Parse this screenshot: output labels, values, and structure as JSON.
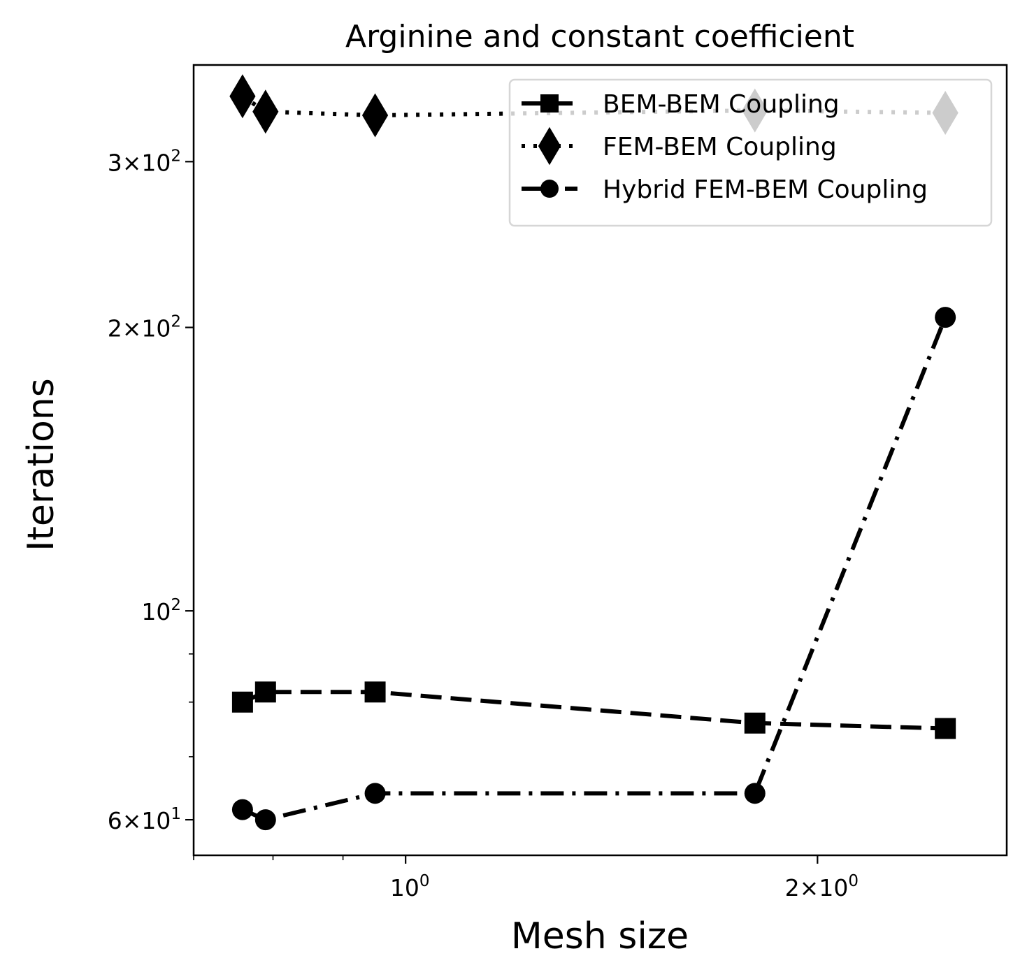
{
  "chart_data": {
    "type": "line",
    "title": "Arginine and constant coefficient",
    "xlabel": "Mesh size",
    "ylabel": "Iterations",
    "x_scale": "log",
    "y_scale": "log",
    "xlim": [
      0.7,
      2.75
    ],
    "ylim": [
      55,
      380
    ],
    "xticks": [
      {
        "value": 1,
        "base": "10",
        "exp": "0",
        "mantissa": ""
      },
      {
        "value": 2,
        "base": "10",
        "exp": "0",
        "mantissa": "2"
      }
    ],
    "yticks": [
      {
        "value": 60,
        "base": "10",
        "exp": "1",
        "mantissa": "6"
      },
      {
        "value": 100,
        "base": "10",
        "exp": "2",
        "mantissa": ""
      },
      {
        "value": 200,
        "base": "10",
        "exp": "2",
        "mantissa": "2"
      },
      {
        "value": 300,
        "base": "10",
        "exp": "2",
        "mantissa": "3"
      }
    ],
    "times_symbol": "×",
    "grid": false,
    "legend_position": "top-right",
    "series": [
      {
        "name": "BEM-BEM Coupling",
        "marker": "square",
        "linestyle": "dashed",
        "color": "#000000",
        "x": [
          0.76,
          0.79,
          0.95,
          1.8,
          2.48
        ],
        "y": [
          80,
          82,
          82,
          76,
          75
        ]
      },
      {
        "name": "FEM-BEM Coupling",
        "marker": "diamond",
        "linestyle": "dotted",
        "color": "#000000",
        "x": [
          0.76,
          0.79,
          0.95,
          1.8,
          2.48
        ],
        "y": [
          352,
          339,
          336,
          340,
          338
        ]
      },
      {
        "name": "Hybrid FEM-BEM Coupling",
        "marker": "circle",
        "linestyle": "dashdot",
        "color": "#000000",
        "x": [
          0.76,
          0.79,
          0.95,
          1.8,
          2.48
        ],
        "y": [
          61.5,
          60,
          64,
          64,
          205
        ]
      }
    ]
  }
}
